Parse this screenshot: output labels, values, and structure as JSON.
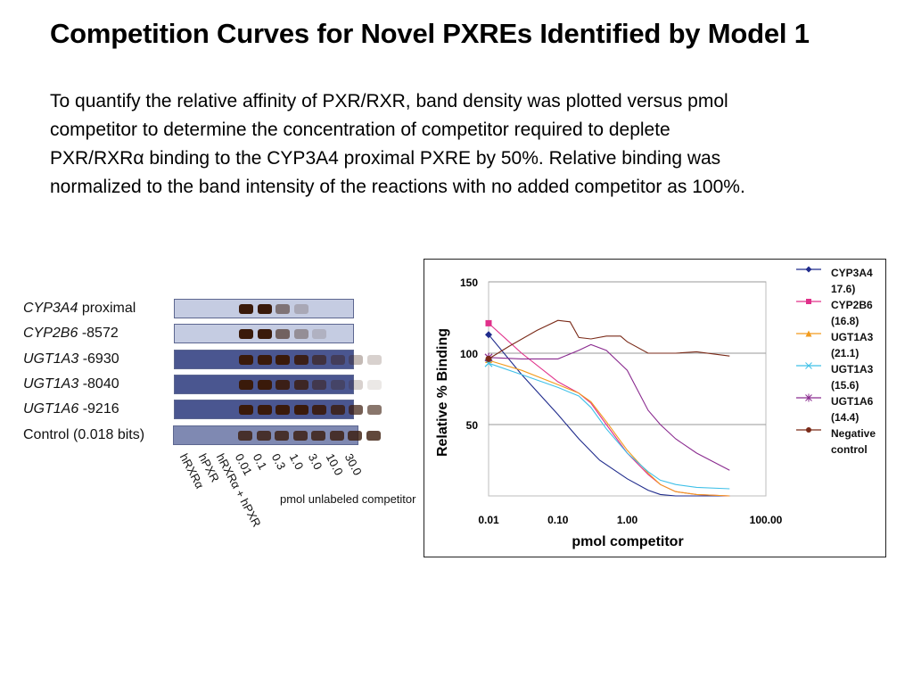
{
  "slide": {
    "title": "Competition Curves for Novel PXREs Identified by Model 1",
    "body_lines": [
      "To quantify the relative affinity of PXR/RXR, band density was plotted versus pmol",
      "competitor to determine the concentration of competitor required to deplete",
      "PXR/RXRα binding to the CYP3A4 proximal PXRE by 50%.  Relative binding was",
      "normalized to the band intensity of the reactions with no added competitor as 100%."
    ]
  },
  "gel": {
    "rows": [
      {
        "gene": "CYP3A4",
        "rest": " proximal",
        "tone": "light",
        "bands": [
          0,
          0,
          1,
          1,
          0.5,
          0.2,
          0,
          0,
          0,
          0
        ]
      },
      {
        "gene": "CYP2B6",
        "rest": " -8572",
        "tone": "light",
        "bands": [
          0,
          0,
          1,
          1,
          0.6,
          0.35,
          0.15,
          0,
          0,
          0
        ]
      },
      {
        "gene": "UGT1A3",
        "rest": " -6930",
        "tone": "dark",
        "bands": [
          0,
          0,
          1,
          1,
          1,
          0.9,
          0.6,
          0.4,
          0.3,
          0.2
        ]
      },
      {
        "gene": "UGT1A3",
        "rest": " -8040",
        "tone": "dark",
        "bands": [
          0,
          0,
          1,
          1,
          0.9,
          0.8,
          0.5,
          0.3,
          0.2,
          0.1
        ]
      },
      {
        "gene": "UGT1A6",
        "rest": " -9216",
        "tone": "dark",
        "bands": [
          0,
          0,
          1,
          1,
          1,
          1,
          0.9,
          0.8,
          0.7,
          0.6
        ]
      },
      {
        "gene": "",
        "rest": "Control (0.018 bits)",
        "tone": "mid",
        "bands": [
          0,
          0,
          0.8,
          0.8,
          0.8,
          0.8,
          0.8,
          0.8,
          0.8,
          0.8
        ]
      }
    ],
    "lane_labels": [
      "hRXRα",
      "hPXR",
      "hRXRα + hPXR",
      "0.01",
      "0.1",
      "0.3",
      "1.0",
      "3.0",
      "10.0",
      "30.0"
    ],
    "caption": "pmol unlabeled competitor"
  },
  "chart_data": {
    "type": "line",
    "xlabel": "pmol competitor",
    "ylabel": "Relative % Binding",
    "x_scale": "log",
    "xlim": [
      0.01,
      100
    ],
    "ylim": [
      0,
      150
    ],
    "x_ticks": [
      "0.01",
      "0.10",
      "1.00",
      "100.00"
    ],
    "y_ticks": [
      "150",
      "100",
      "50"
    ],
    "grid": "horizontal",
    "legend": "right",
    "series": [
      {
        "name": "CYP3A4 17.6)",
        "color": "#1f2b8c",
        "marker": "diamond",
        "x": [
          0.01,
          0.03,
          0.1,
          0.2,
          0.4,
          1,
          2,
          3,
          5,
          10,
          30
        ],
        "y": [
          113,
          85,
          57,
          40,
          25,
          12,
          4,
          1,
          0,
          0,
          0
        ]
      },
      {
        "name": "CYP2B6 (16.8)",
        "color": "#e0308a",
        "marker": "square",
        "x": [
          0.01,
          0.03,
          0.1,
          0.2,
          0.3,
          0.5,
          1,
          2,
          3,
          5,
          10,
          30
        ],
        "y": [
          121,
          100,
          80,
          72,
          65,
          50,
          30,
          15,
          8,
          3,
          1,
          0
        ]
      },
      {
        "name": "UGT1A3 (21.1)",
        "color": "#f29b1d",
        "marker": "triangle",
        "x": [
          0.01,
          0.03,
          0.1,
          0.2,
          0.3,
          0.5,
          1,
          2,
          3,
          5,
          10,
          30
        ],
        "y": [
          95,
          88,
          78,
          72,
          66,
          52,
          32,
          16,
          8,
          3,
          1,
          0
        ]
      },
      {
        "name": "UGT1A3 (15.6)",
        "color": "#3fc0e8",
        "marker": "x",
        "x": [
          0.01,
          0.03,
          0.1,
          0.2,
          0.3,
          0.5,
          1,
          2,
          3,
          5,
          10,
          30
        ],
        "y": [
          93,
          85,
          76,
          70,
          62,
          47,
          30,
          17,
          11,
          8,
          6,
          5
        ]
      },
      {
        "name": "UGT1A6 (14.4)",
        "color": "#8a2b8f",
        "marker": "asterisk",
        "x": [
          0.01,
          0.03,
          0.1,
          0.2,
          0.3,
          0.5,
          1,
          2,
          3,
          5,
          10,
          30
        ],
        "y": [
          97,
          96,
          96,
          102,
          106,
          102,
          88,
          60,
          50,
          40,
          30,
          18
        ]
      },
      {
        "name": "Negative control",
        "color": "#7a2a18",
        "marker": "circle",
        "x": [
          0.01,
          0.02,
          0.05,
          0.1,
          0.15,
          0.2,
          0.3,
          0.5,
          0.8,
          1,
          2,
          3,
          5,
          10,
          30
        ],
        "y": [
          96,
          105,
          116,
          123,
          122,
          111,
          110,
          112,
          112,
          108,
          100,
          100,
          100,
          101,
          98
        ]
      }
    ]
  }
}
